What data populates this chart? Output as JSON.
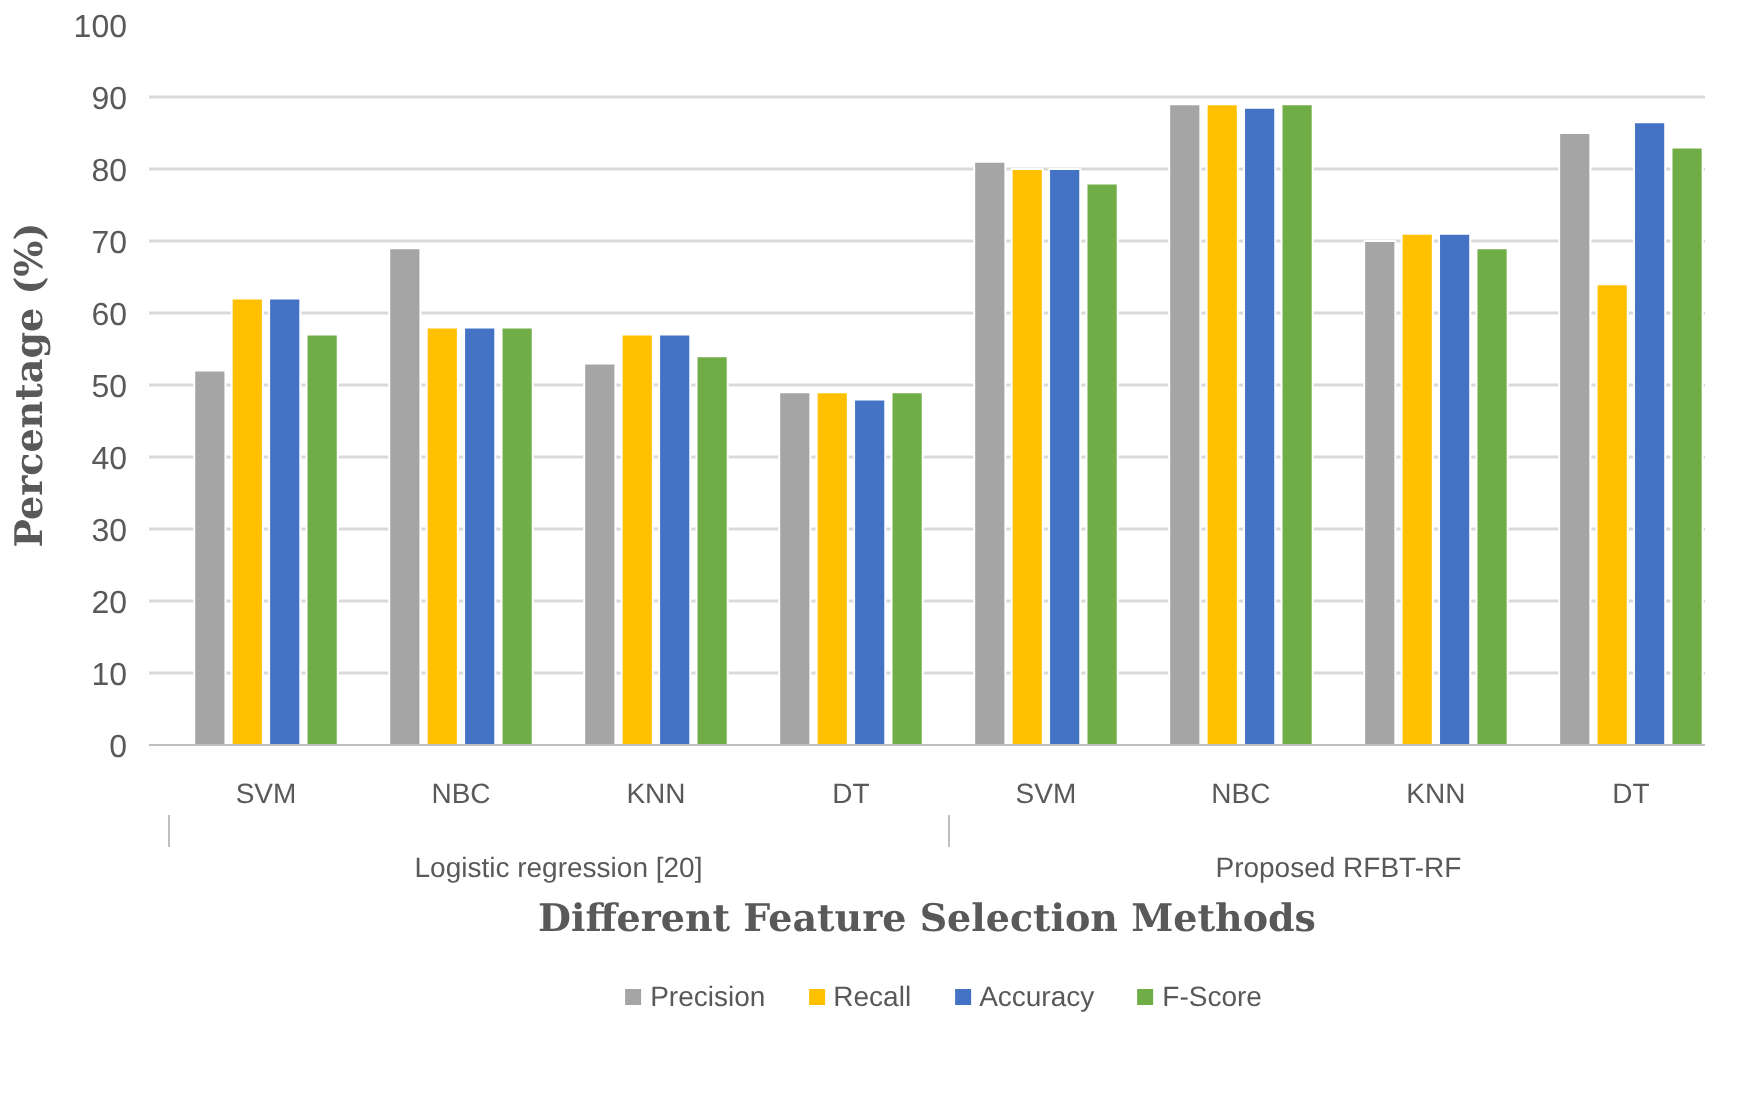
{
  "chart_data": {
    "type": "bar",
    "xlabel": "Different Feature Selection Methods",
    "ylabel": "Percentage (%)",
    "categories": [
      "SVM",
      "NBC",
      "KNN",
      "DT",
      "SVM",
      "NBC",
      "KNN",
      "DT"
    ],
    "series": [
      {
        "name": "Precision",
        "color": "#a5a5a5",
        "values": [
          52,
          69,
          53,
          49,
          81,
          89,
          70,
          85
        ]
      },
      {
        "name": "Recall",
        "color": "#ffc000",
        "values": [
          62,
          58,
          57,
          49,
          80,
          89,
          71,
          64
        ]
      },
      {
        "name": "Accuracy",
        "color": "#4472c4",
        "values": [
          62,
          58,
          57,
          48,
          80,
          88.5,
          71,
          86.5
        ]
      },
      {
        "name": "F-Score",
        "color": "#70ad47",
        "values": [
          57,
          58,
          54,
          49,
          78,
          89,
          69,
          83
        ]
      }
    ],
    "ylim": [
      0,
      100
    ],
    "yticks": [
      0,
      10,
      20,
      30,
      40,
      50,
      60,
      70,
      80,
      90,
      100
    ],
    "grid": "y",
    "legend": "bottom",
    "annotations": [
      "Logistic regression [20]",
      "Proposed RFBT-RF"
    ]
  }
}
